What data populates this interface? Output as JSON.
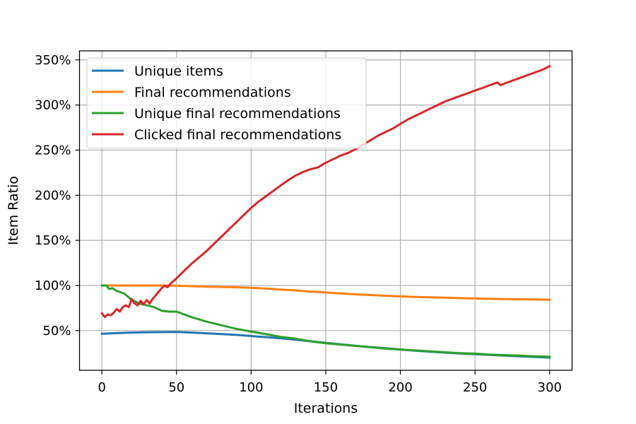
{
  "chart_data": {
    "type": "line",
    "title": "",
    "xlabel": "Iterations",
    "ylabel": "Item Ratio",
    "xlim": [
      -15,
      315
    ],
    "ylim": [
      0.06,
      3.6
    ],
    "xticks": [
      0,
      50,
      100,
      150,
      200,
      250,
      300
    ],
    "xtick_labels": [
      "0",
      "50",
      "100",
      "150",
      "200",
      "250",
      "300"
    ],
    "yticks": [
      0.5,
      1.0,
      1.5,
      2.0,
      2.5,
      3.0,
      3.5
    ],
    "ytick_labels": [
      "50%",
      "100%",
      "150%",
      "200%",
      "250%",
      "300%",
      "350%"
    ],
    "grid": true,
    "legend_position": "top-left",
    "series": [
      {
        "name": "Unique items",
        "color": "#1f77b4",
        "x": [
          0,
          10,
          20,
          30,
          40,
          50,
          60,
          70,
          80,
          90,
          100,
          110,
          120,
          130,
          140,
          150,
          160,
          170,
          180,
          190,
          200,
          210,
          220,
          230,
          240,
          250,
          260,
          270,
          280,
          290,
          300
        ],
        "y": [
          0.465,
          0.472,
          0.478,
          0.482,
          0.483,
          0.485,
          0.478,
          0.47,
          0.462,
          0.452,
          0.44,
          0.427,
          0.414,
          0.398,
          0.382,
          0.365,
          0.348,
          0.332,
          0.318,
          0.304,
          0.29,
          0.278,
          0.266,
          0.256,
          0.246,
          0.238,
          0.23,
          0.222,
          0.215,
          0.208,
          0.2
        ]
      },
      {
        "name": "Final recommendations",
        "color": "#ff7f0e",
        "x": [
          0,
          10,
          20,
          30,
          40,
          50,
          60,
          70,
          80,
          90,
          100,
          110,
          120,
          130,
          140,
          150,
          160,
          170,
          180,
          190,
          200,
          210,
          220,
          230,
          240,
          250,
          260,
          270,
          280,
          290,
          300
        ],
        "y": [
          1.0,
          1.0,
          1.0,
          1.0,
          1.0,
          0.998,
          0.992,
          0.987,
          0.983,
          0.98,
          0.975,
          0.965,
          0.955,
          0.945,
          0.932,
          0.923,
          0.912,
          0.902,
          0.894,
          0.886,
          0.879,
          0.873,
          0.868,
          0.864,
          0.86,
          0.856,
          0.852,
          0.849,
          0.847,
          0.845,
          0.842
        ]
      },
      {
        "name": "Unique final recommendations",
        "color": "#2ca02c",
        "x": [
          0,
          3,
          5,
          7,
          10,
          15,
          20,
          25,
          30,
          35,
          40,
          45,
          50,
          55,
          60,
          70,
          80,
          90,
          100,
          110,
          120,
          130,
          140,
          150,
          160,
          170,
          180,
          190,
          200,
          210,
          220,
          230,
          240,
          250,
          260,
          270,
          280,
          290,
          300
        ],
        "y": [
          1.0,
          1.0,
          0.96,
          0.97,
          0.94,
          0.91,
          0.84,
          0.8,
          0.78,
          0.76,
          0.72,
          0.71,
          0.71,
          0.68,
          0.65,
          0.6,
          0.56,
          0.52,
          0.49,
          0.46,
          0.43,
          0.41,
          0.38,
          0.36,
          0.345,
          0.33,
          0.315,
          0.3,
          0.29,
          0.28,
          0.27,
          0.26,
          0.25,
          0.245,
          0.235,
          0.228,
          0.222,
          0.215,
          0.21
        ]
      },
      {
        "name": "Clicked final recommendations",
        "color": "#d62728",
        "x": [
          0,
          2,
          4,
          6,
          8,
          10,
          12,
          14,
          16,
          18,
          20,
          22,
          24,
          26,
          28,
          30,
          32,
          34,
          36,
          38,
          40,
          42,
          44,
          46,
          48,
          50,
          55,
          60,
          65,
          70,
          75,
          80,
          85,
          90,
          95,
          100,
          105,
          110,
          115,
          120,
          125,
          130,
          135,
          140,
          145,
          150,
          155,
          160,
          165,
          170,
          175,
          180,
          185,
          190,
          195,
          200,
          205,
          210,
          215,
          220,
          225,
          230,
          235,
          240,
          245,
          250,
          255,
          260,
          265,
          267,
          270,
          275,
          280,
          285,
          290,
          295,
          300
        ],
        "y": [
          0.69,
          0.65,
          0.68,
          0.67,
          0.7,
          0.74,
          0.71,
          0.76,
          0.78,
          0.76,
          0.85,
          0.8,
          0.78,
          0.83,
          0.79,
          0.84,
          0.8,
          0.85,
          0.89,
          0.93,
          0.97,
          1.0,
          0.98,
          1.02,
          1.05,
          1.08,
          1.16,
          1.24,
          1.31,
          1.38,
          1.46,
          1.54,
          1.62,
          1.7,
          1.78,
          1.86,
          1.93,
          1.99,
          2.05,
          2.11,
          2.17,
          2.22,
          2.26,
          2.29,
          2.31,
          2.36,
          2.4,
          2.44,
          2.47,
          2.51,
          2.56,
          2.61,
          2.66,
          2.7,
          2.74,
          2.79,
          2.84,
          2.88,
          2.92,
          2.96,
          3.0,
          3.04,
          3.07,
          3.1,
          3.13,
          3.16,
          3.19,
          3.22,
          3.25,
          3.22,
          3.24,
          3.27,
          3.3,
          3.33,
          3.36,
          3.39,
          3.43
        ]
      }
    ]
  }
}
